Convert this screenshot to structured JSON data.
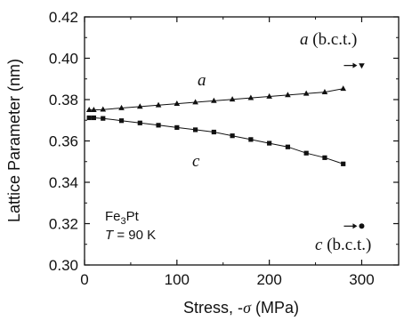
{
  "chart_data": {
    "type": "line",
    "xlabel_main": "Stress, -",
    "xlabel_sym": "σ",
    "xlabel_unit": " (MPa)",
    "ylabel": "Lattice Parameter (nm)",
    "xlim": [
      0,
      340
    ],
    "ylim": [
      0.3,
      0.42
    ],
    "xticks": [
      0,
      100,
      200,
      300
    ],
    "yticks": [
      "0.30",
      "0.32",
      "0.34",
      "0.36",
      "0.38",
      "0.40",
      "0.42"
    ],
    "series": [
      {
        "name": "a",
        "marker": "triangle",
        "x": [
          5,
          10,
          20,
          40,
          60,
          80,
          100,
          120,
          140,
          160,
          180,
          200,
          220,
          240,
          260,
          280
        ],
        "y": [
          0.375,
          0.375,
          0.3752,
          0.3759,
          0.3766,
          0.3773,
          0.378,
          0.3787,
          0.3794,
          0.3801,
          0.3808,
          0.3815,
          0.3822,
          0.3829,
          0.3836,
          0.3853
        ]
      },
      {
        "name": "c",
        "marker": "square",
        "x": [
          5,
          10,
          20,
          40,
          60,
          80,
          100,
          120,
          140,
          160,
          180,
          200,
          220,
          240,
          260,
          280
        ],
        "y": [
          0.3712,
          0.3712,
          0.3709,
          0.3698,
          0.3687,
          0.3676,
          0.3665,
          0.3654,
          0.3643,
          0.3625,
          0.3607,
          0.3589,
          0.3571,
          0.3541,
          0.3519,
          0.3489
        ]
      }
    ],
    "reference_points": [
      {
        "label_italic": "a",
        "label_rest": " (b.c.t.)",
        "x": 300,
        "y": 0.3965,
        "marker": "triangle"
      },
      {
        "label_italic": "c",
        "label_rest": " (b.c.t.)",
        "x": 300,
        "y": 0.3188,
        "marker": "circle"
      }
    ],
    "annotations": {
      "series_a_label": "a",
      "series_c_label": "c",
      "material_base": "Fe",
      "material_sub": "3",
      "material_rest": "Pt",
      "temp_sym": "T",
      "temp_rest": " = 90 K"
    }
  }
}
